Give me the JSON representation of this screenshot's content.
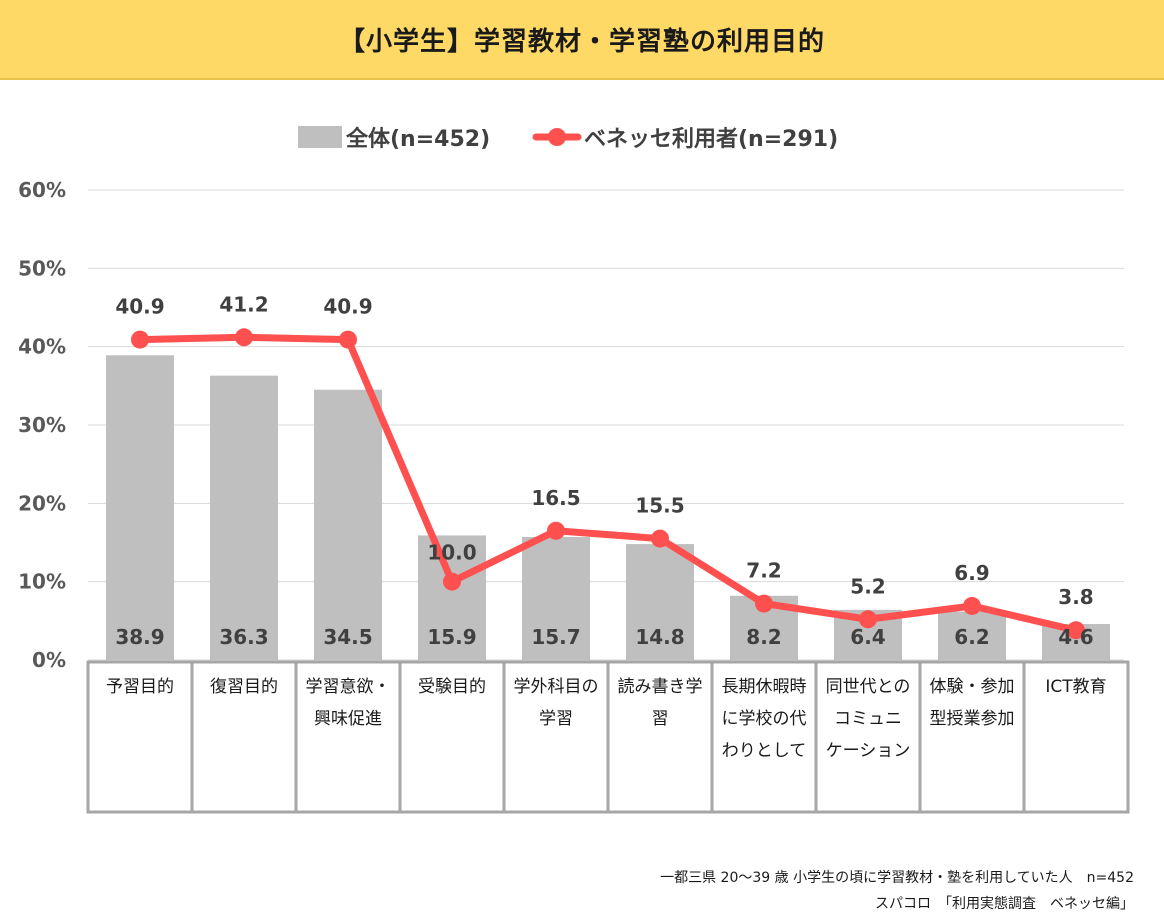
{
  "chart_data": {
    "type": "bar",
    "title": "【小学生】学習教材・学習塾の利用目的",
    "categories": [
      [
        "予習目的"
      ],
      [
        "復習目的"
      ],
      [
        "学習意欲・",
        "興味促進"
      ],
      [
        "受験目的"
      ],
      [
        "学外科目の",
        "学習"
      ],
      [
        "読み書き学",
        "習"
      ],
      [
        "長期休暇時",
        "に学校の代",
        "わりとして"
      ],
      [
        "同世代との",
        "コミュニ",
        "ケーション"
      ],
      [
        "体験・参加",
        "型授業参加"
      ],
      [
        "ICT教育"
      ]
    ],
    "series": [
      {
        "name": "全体(n=452)",
        "type": "bar",
        "color": "#BFBFBF",
        "values": [
          38.9,
          36.3,
          34.5,
          15.9,
          15.7,
          14.8,
          8.2,
          6.4,
          6.2,
          4.6
        ]
      },
      {
        "name": "ベネッセ利用者(n=291)",
        "type": "line",
        "color": "#FF5050",
        "values": [
          40.9,
          41.2,
          40.9,
          10.0,
          16.5,
          15.5,
          7.2,
          5.2,
          6.9,
          3.8
        ]
      }
    ],
    "ylim": [
      0,
      60
    ],
    "yticks": [
      "0%",
      "10%",
      "20%",
      "30%",
      "40%",
      "50%",
      "60%"
    ],
    "grid": true,
    "legend": "top-center"
  },
  "footnotes": {
    "line1": "一都三県 20～39 歳 小学生の頃に学習教材・塾を利用していた人　n=452",
    "line2": "スパコロ　「利用実態調査　ベネッセ編」"
  }
}
